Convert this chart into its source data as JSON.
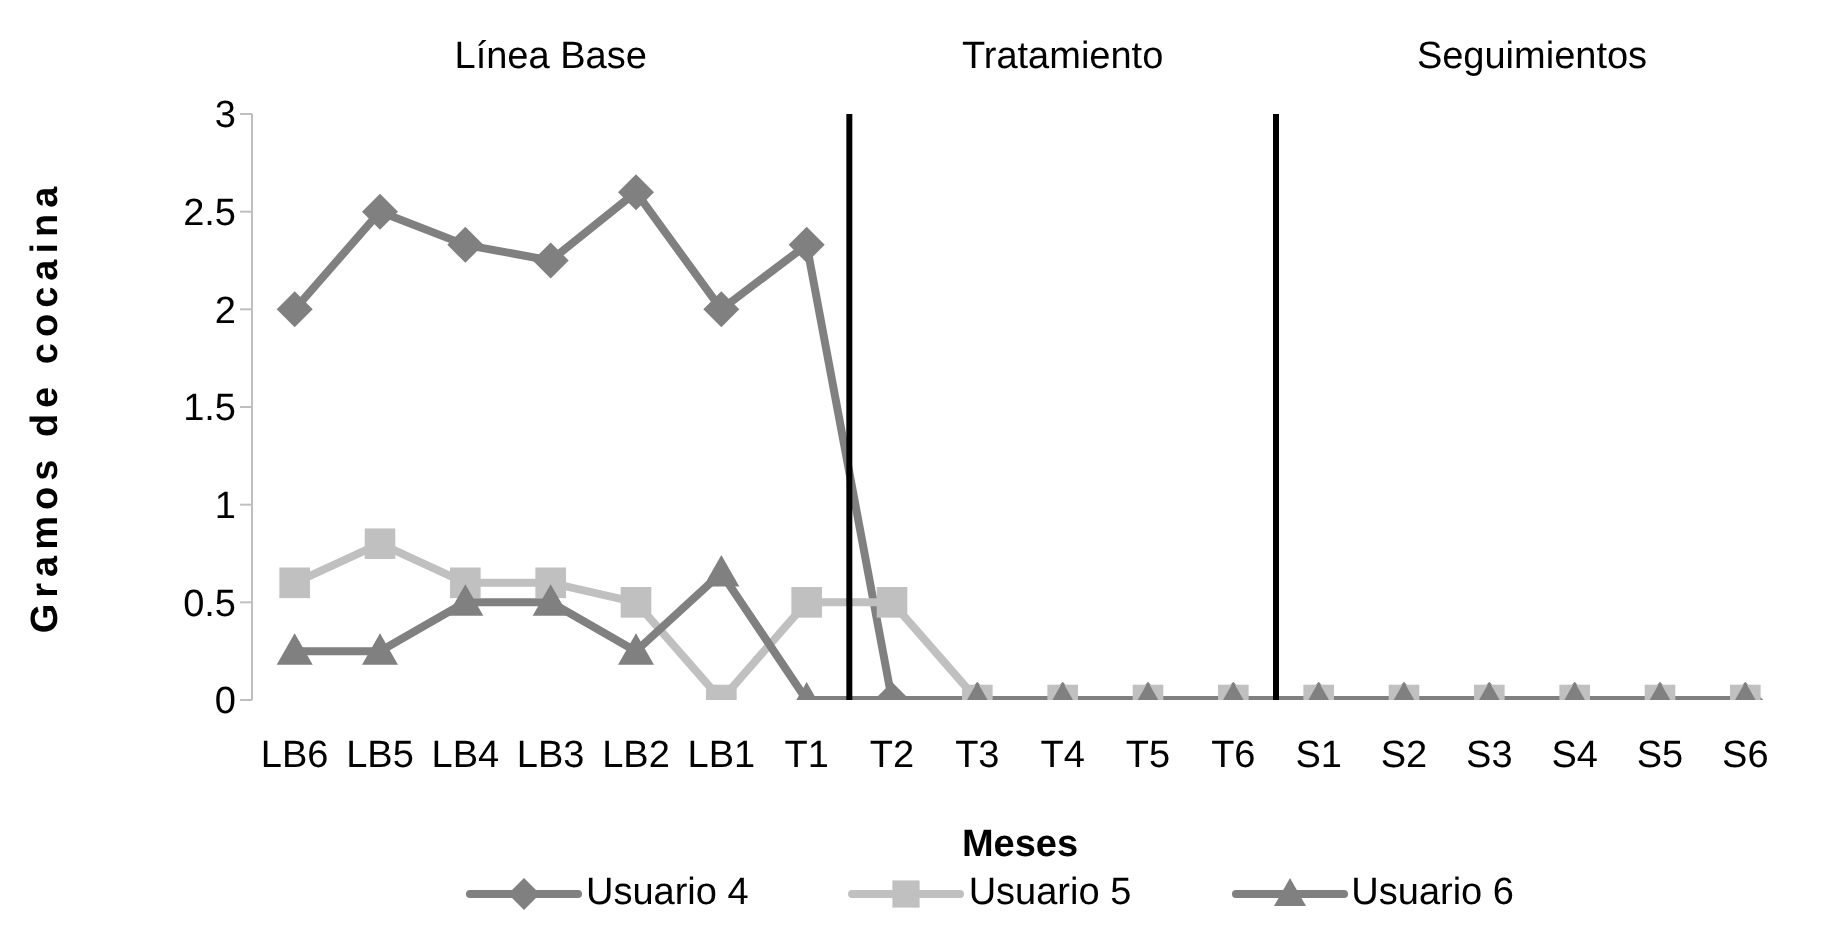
{
  "chart_data": {
    "type": "line",
    "xlabel": "Meses",
    "ylabel": "Gramos de cocaina",
    "categories": [
      "LB6",
      "LB5",
      "LB4",
      "LB3",
      "LB2",
      "LB1",
      "T1",
      "T2",
      "T3",
      "T4",
      "T5",
      "T6",
      "S1",
      "S2",
      "S3",
      "S4",
      "S5",
      "S6"
    ],
    "series": [
      {
        "name": "Usuario 4",
        "color": "#808080",
        "marker": "diamond",
        "values": [
          2,
          2.5,
          2.33,
          2.25,
          2.6,
          2,
          2.33,
          0,
          0,
          0,
          0,
          0,
          0,
          0,
          0,
          0,
          0,
          0
        ]
      },
      {
        "name": "Usuario 5",
        "color": "#c0c0c0",
        "marker": "square",
        "values": [
          0.6,
          0.8,
          0.6,
          0.6,
          0.5,
          0,
          0.5,
          0.5,
          0,
          0,
          0,
          0,
          0,
          0,
          0,
          0,
          0,
          0
        ]
      },
      {
        "name": "Usuario 6",
        "color": "#808080",
        "marker": "triangle",
        "values": [
          0.25,
          0.25,
          0.5,
          0.5,
          0.25,
          0.65,
          0,
          0,
          0,
          0,
          0,
          0,
          0,
          0,
          0,
          0,
          0,
          0
        ]
      }
    ],
    "ylim": [
      0,
      3
    ],
    "yticks": [
      0,
      0.5,
      1,
      1.5,
      2,
      2.5,
      3
    ],
    "annotations": [
      "Línea Base",
      "Tratamiento",
      "Seguimientos"
    ],
    "grid": false,
    "legend": "bottom"
  }
}
